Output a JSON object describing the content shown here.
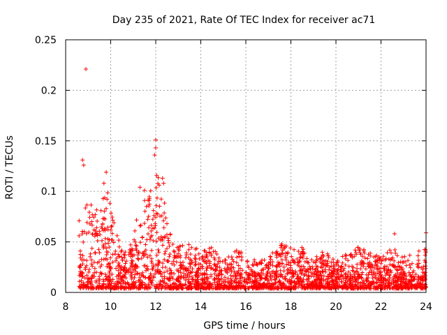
{
  "chart_data": {
    "type": "scatter",
    "title": "Day 235 of 2021, Rate Of TEC Index for receiver ac71",
    "xlabel": "GPS time / hours",
    "ylabel": "ROTI / TECUs",
    "xlim": [
      8,
      24
    ],
    "ylim": [
      0,
      0.25
    ],
    "xticks": [
      "8",
      "10",
      "12",
      "14",
      "16",
      "18",
      "20",
      "22",
      "24"
    ],
    "yticks": [
      "0",
      "0.05",
      "0.1",
      "0.15",
      "0.2",
      "0.25"
    ],
    "grid": true,
    "marker": "+",
    "color": "#ff0000",
    "series": [
      {
        "name": "ROTI",
        "highlights": [
          {
            "x": 8.9,
            "y": 0.221
          },
          {
            "x": 12.0,
            "y": 0.151
          },
          {
            "x": 12.0,
            "y": 0.143
          },
          {
            "x": 11.95,
            "y": 0.136
          },
          {
            "x": 8.75,
            "y": 0.131
          },
          {
            "x": 8.8,
            "y": 0.126
          },
          {
            "x": 9.8,
            "y": 0.119
          },
          {
            "x": 12.3,
            "y": 0.113
          },
          {
            "x": 12.35,
            "y": 0.108
          },
          {
            "x": 9.7,
            "y": 0.108
          },
          {
            "x": 11.3,
            "y": 0.104
          },
          {
            "x": 11.5,
            "y": 0.101
          },
          {
            "x": 22.6,
            "y": 0.058
          },
          {
            "x": 24.0,
            "y": 0.059
          },
          {
            "x": 8.6,
            "y": 0.071
          },
          {
            "x": 8.6,
            "y": 0.056
          }
        ],
        "envelope": [
          {
            "x": 8.6,
            "ymax": 0.032
          },
          {
            "x": 8.8,
            "ymax": 0.1
          },
          {
            "x": 9.0,
            "ymax": 0.09
          },
          {
            "x": 9.3,
            "ymax": 0.095
          },
          {
            "x": 9.5,
            "ymax": 0.08
          },
          {
            "x": 9.8,
            "ymax": 0.105
          },
          {
            "x": 10.0,
            "ymax": 0.085
          },
          {
            "x": 10.3,
            "ymax": 0.055
          },
          {
            "x": 10.6,
            "ymax": 0.045
          },
          {
            "x": 11.0,
            "ymax": 0.05
          },
          {
            "x": 11.3,
            "ymax": 0.095
          },
          {
            "x": 11.6,
            "ymax": 0.09
          },
          {
            "x": 12.0,
            "ymax": 0.12
          },
          {
            "x": 12.3,
            "ymax": 0.105
          },
          {
            "x": 12.6,
            "ymax": 0.06
          },
          {
            "x": 13.0,
            "ymax": 0.045
          },
          {
            "x": 13.5,
            "ymax": 0.05
          },
          {
            "x": 14.0,
            "ymax": 0.04
          },
          {
            "x": 14.5,
            "ymax": 0.045
          },
          {
            "x": 15.0,
            "ymax": 0.03
          },
          {
            "x": 15.5,
            "ymax": 0.045
          },
          {
            "x": 16.0,
            "ymax": 0.04
          },
          {
            "x": 16.5,
            "ymax": 0.03
          },
          {
            "x": 17.0,
            "ymax": 0.035
          },
          {
            "x": 17.5,
            "ymax": 0.05
          },
          {
            "x": 18.0,
            "ymax": 0.045
          },
          {
            "x": 18.5,
            "ymax": 0.045
          },
          {
            "x": 19.0,
            "ymax": 0.035
          },
          {
            "x": 19.5,
            "ymax": 0.042
          },
          {
            "x": 20.0,
            "ymax": 0.03
          },
          {
            "x": 20.5,
            "ymax": 0.04
          },
          {
            "x": 21.0,
            "ymax": 0.045
          },
          {
            "x": 21.5,
            "ymax": 0.04
          },
          {
            "x": 22.0,
            "ymax": 0.035
          },
          {
            "x": 22.5,
            "ymax": 0.045
          },
          {
            "x": 23.0,
            "ymax": 0.035
          },
          {
            "x": 23.5,
            "ymax": 0.04
          },
          {
            "x": 24.0,
            "ymax": 0.045
          }
        ],
        "baseline_min": 0.004
      }
    ]
  }
}
